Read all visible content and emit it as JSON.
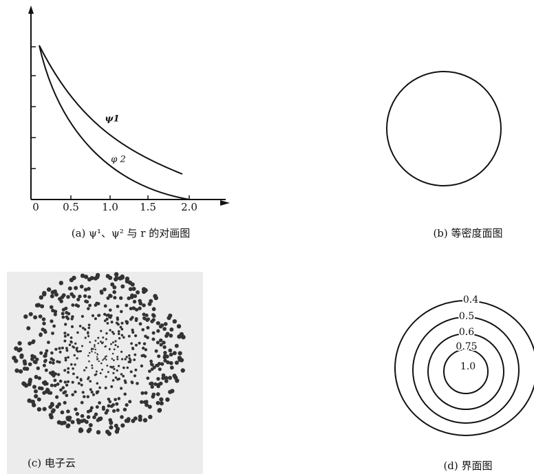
{
  "panel_a": {
    "x_tick_labels": [
      "0",
      "0.5",
      "1.0",
      "1.5",
      "2.0"
    ],
    "curve_labels": [
      "ψ1",
      "φ 2"
    ],
    "caption": "(a) ψ¹、ψ² 与 r 的对画图"
  },
  "panel_b": {
    "caption": "(b) 等密度面图"
  },
  "panel_c": {
    "caption": "(c) 电子云"
  },
  "panel_d": {
    "contour_labels": [
      "0.4",
      "0.5",
      "0.6",
      "0.75",
      "1.0"
    ],
    "caption": "(d) 界面图"
  }
}
